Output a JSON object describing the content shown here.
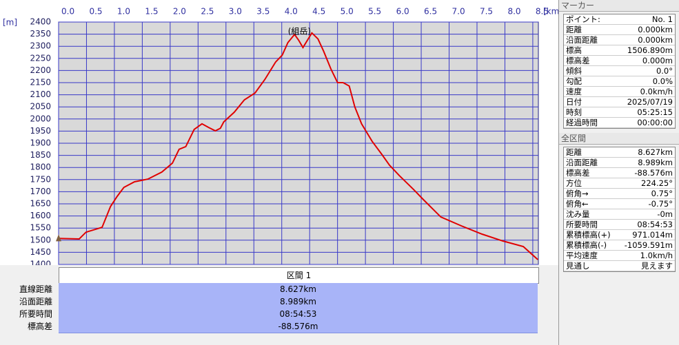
{
  "chart_data": {
    "type": "line",
    "xlabel": "[km]",
    "ylabel": "[m]",
    "peak_label": "(組岳)",
    "x": [
      0,
      0.37,
      0.49,
      0.78,
      0.93,
      1.05,
      1.17,
      1.36,
      1.6,
      1.85,
      2.04,
      2.16,
      2.28,
      2.43,
      2.57,
      2.69,
      2.81,
      2.9,
      2.96,
      3.15,
      3.33,
      3.52,
      3.7,
      3.89,
      4.01,
      4.11,
      4.23,
      4.3,
      4.38,
      4.54,
      4.65,
      4.75,
      4.88,
      5.0,
      5.1,
      5.21,
      5.31,
      5.43,
      5.62,
      5.8,
      5.93,
      6.11,
      6.36,
      6.54,
      6.85,
      7.22,
      7.59,
      7.96,
      8.33,
      8.59
    ],
    "series": [
      {
        "color": "#e00000",
        "values": [
          1507,
          1505,
          1533,
          1553,
          1639,
          1681,
          1718,
          1741,
          1752,
          1781,
          1818,
          1875,
          1886,
          1957,
          1980,
          1965,
          1951,
          1962,
          1988,
          2028,
          2079,
          2107,
          2164,
          2235,
          2264,
          2315,
          2349,
          2326,
          2295,
          2355,
          2330,
          2280,
          2207,
          2150,
          2150,
          2136,
          2050,
          1980,
          1908,
          1852,
          1810,
          1766,
          1710,
          1667,
          1596,
          1559,
          1525,
          1497,
          1474,
          1420
        ]
      }
    ],
    "xlim": [
      0,
      8.6
    ],
    "xticks": [
      {
        "value": 0,
        "label": "0.0"
      },
      0.5,
      {
        "value": 1,
        "label": "1.0"
      },
      1.5,
      {
        "value": 2,
        "label": "2.0"
      },
      2.5,
      {
        "value": 3,
        "label": "3.0"
      },
      3.5,
      {
        "value": 4,
        "label": "4.0"
      },
      4.5,
      {
        "value": 5,
        "label": "5.0"
      },
      5.5,
      {
        "value": 6,
        "label": "6.0"
      },
      6.5,
      {
        "value": 7,
        "label": "7.0"
      },
      7.5,
      {
        "value": 8,
        "label": "8.0"
      },
      8.5
    ],
    "ylim": [
      1400,
      2400
    ],
    "yticks": [
      1400,
      1450,
      1500,
      1550,
      1600,
      1650,
      1700,
      1750,
      1800,
      1850,
      1900,
      1950,
      2000,
      2050,
      2100,
      2150,
      2200,
      2250,
      2300,
      2350,
      2400
    ],
    "grid": true
  },
  "section": {
    "title": "区間 1",
    "rows": [
      [
        "直線距離",
        "8.627km"
      ],
      [
        "沿面距離",
        "8.989km"
      ],
      [
        "所要時間",
        "08:54:53"
      ],
      [
        "標高差",
        "-88.576m"
      ]
    ]
  },
  "marker": {
    "title": "マーカー",
    "rows": [
      [
        "ポイント:",
        "No. 1"
      ],
      [
        "距離",
        "0.000km"
      ],
      [
        "沿面距離",
        "0.000km"
      ],
      [
        "標高",
        "1506.890m"
      ],
      [
        "標高差",
        "0.000m"
      ],
      [
        "傾斜",
        "0.0°"
      ],
      [
        "勾配",
        "0.0%"
      ],
      [
        "速度",
        "0.0km/h"
      ],
      [
        "日付",
        "2025/07/19"
      ],
      [
        "時刻",
        "05:25:15"
      ],
      [
        "経過時間",
        "00:00:00"
      ]
    ]
  },
  "total": {
    "title": "全区間",
    "rows": [
      [
        "距離",
        "8.627km"
      ],
      [
        "沿面距離",
        "8.989km"
      ],
      [
        "標高差",
        "-88.576m"
      ],
      [
        "方位",
        "224.25°"
      ],
      [
        "俯角→",
        "0.75°"
      ],
      [
        "俯角←",
        "-0.75°"
      ],
      [
        "沈み量",
        "-0m"
      ],
      [
        "所要時間",
        "08:54:53"
      ],
      [
        "累積標高(+)",
        "971.014m"
      ],
      [
        "累積標高(-)",
        "-1059.591m"
      ],
      [
        "平均速度",
        "1.0km/h"
      ],
      [
        "見通し",
        "見えます"
      ]
    ]
  }
}
